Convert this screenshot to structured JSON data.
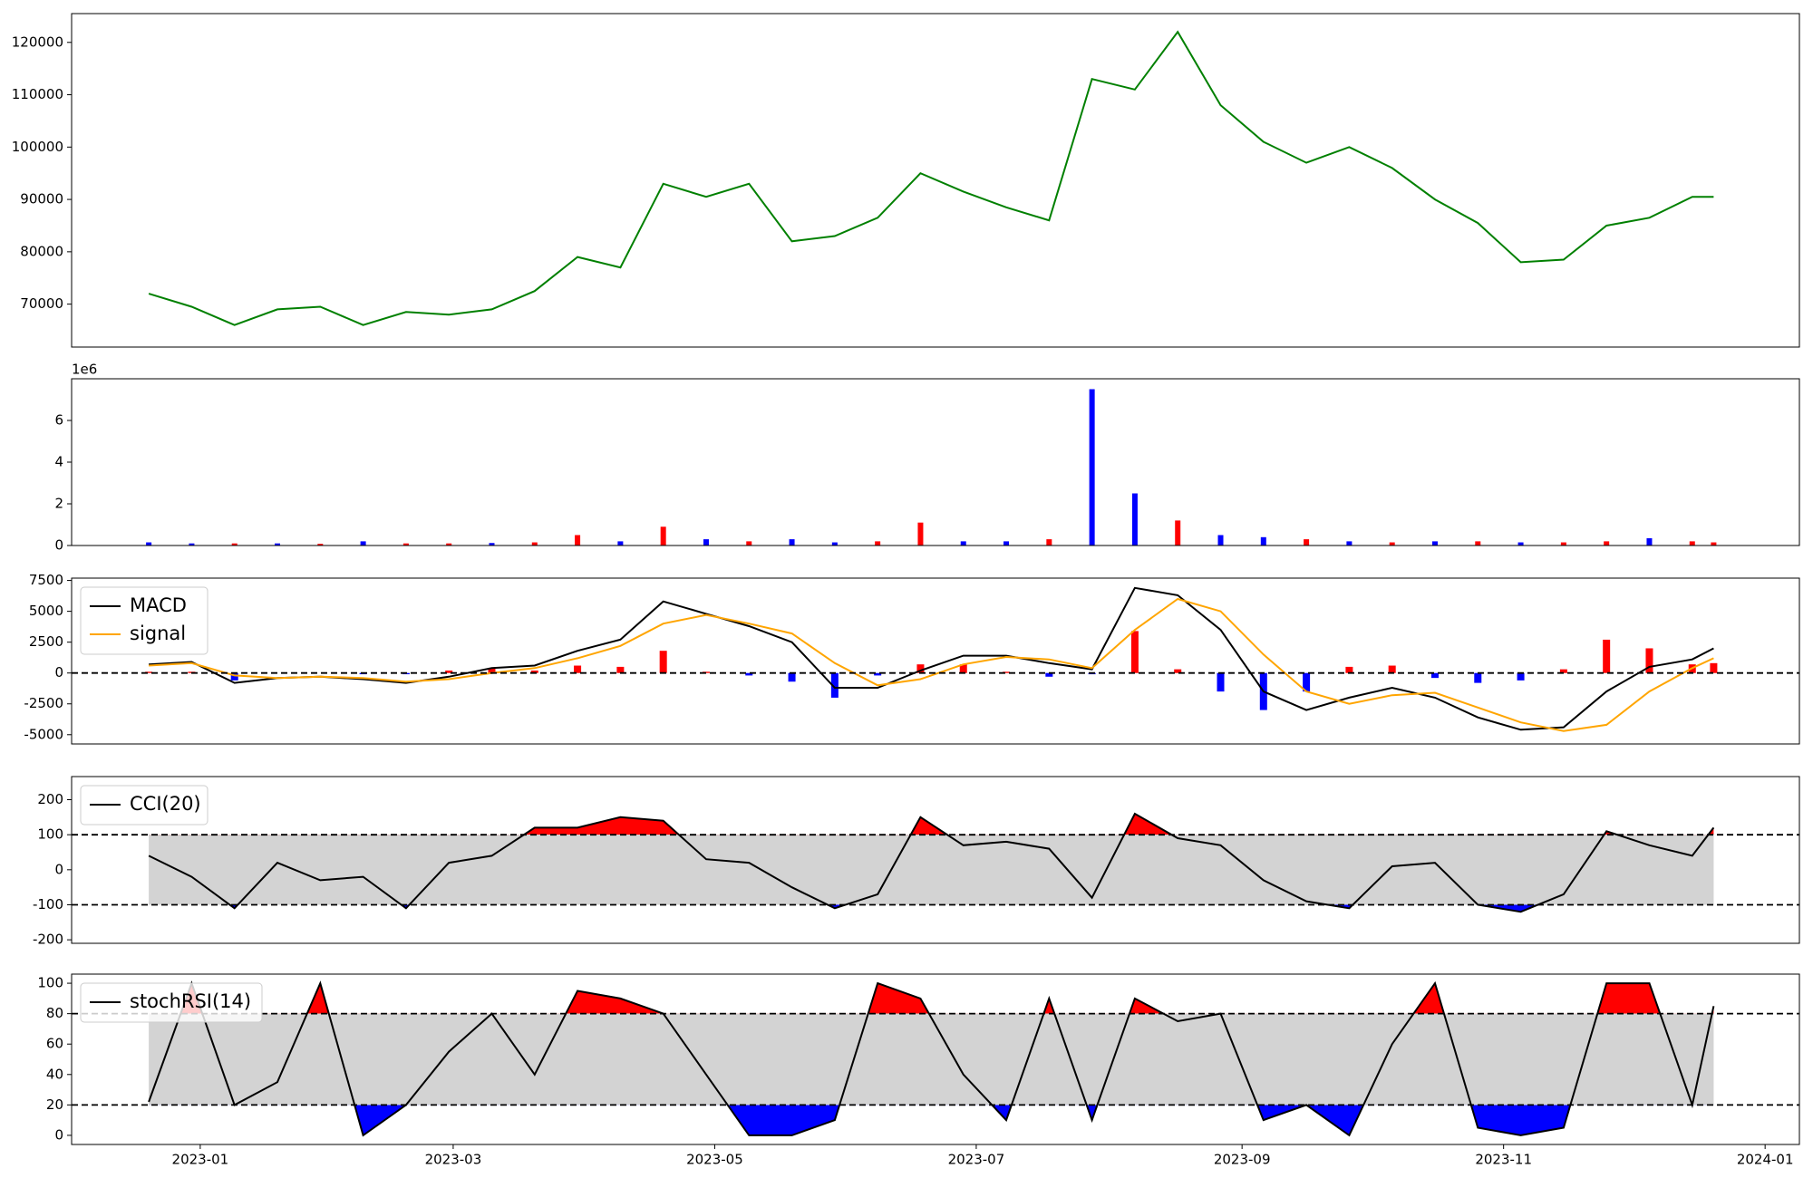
{
  "chart_data": [
    {
      "type": "line",
      "color": "#008000",
      "x": [
        "2022-12-20",
        "2022-12-30",
        "2023-01-09",
        "2023-01-19",
        "2023-01-29",
        "2023-02-08",
        "2023-02-18",
        "2023-02-28",
        "2023-03-10",
        "2023-03-20",
        "2023-03-30",
        "2023-04-09",
        "2023-04-19",
        "2023-04-29",
        "2023-05-09",
        "2023-05-19",
        "2023-05-29",
        "2023-06-08",
        "2023-06-18",
        "2023-06-28",
        "2023-07-08",
        "2023-07-18",
        "2023-07-28",
        "2023-08-07",
        "2023-08-17",
        "2023-08-27",
        "2023-09-06",
        "2023-09-16",
        "2023-09-26",
        "2023-10-06",
        "2023-10-16",
        "2023-10-26",
        "2023-11-05",
        "2023-11-15",
        "2023-11-25",
        "2023-12-05",
        "2023-12-15",
        "2023-12-20"
      ],
      "values": [
        72000,
        69500,
        66000,
        69000,
        69500,
        66000,
        68500,
        68000,
        69000,
        72500,
        79000,
        77000,
        93000,
        90500,
        93000,
        82000,
        83000,
        86500,
        95000,
        91500,
        88500,
        86000,
        113000,
        111000,
        122000,
        108000,
        101000,
        97000,
        100000,
        96000,
        90000,
        85500,
        78000,
        78500,
        85000,
        86500,
        90500,
        90500
      ],
      "xlim": [
        "2022-12-02",
        "2024-01-09"
      ],
      "ylim": [
        61800,
        125500
      ],
      "yticks": [
        70000,
        80000,
        90000,
        100000,
        110000,
        120000
      ]
    },
    {
      "type": "bar",
      "offset_label": "1e6",
      "x": [
        "2022-12-20",
        "2022-12-30",
        "2023-01-09",
        "2023-01-19",
        "2023-01-29",
        "2023-02-08",
        "2023-02-18",
        "2023-02-28",
        "2023-03-10",
        "2023-03-20",
        "2023-03-30",
        "2023-04-09",
        "2023-04-19",
        "2023-04-29",
        "2023-05-09",
        "2023-05-19",
        "2023-05-29",
        "2023-06-08",
        "2023-06-18",
        "2023-06-28",
        "2023-07-08",
        "2023-07-18",
        "2023-07-28",
        "2023-08-07",
        "2023-08-17",
        "2023-08-27",
        "2023-09-06",
        "2023-09-16",
        "2023-09-26",
        "2023-10-06",
        "2023-10-16",
        "2023-10-26",
        "2023-11-05",
        "2023-11-15",
        "2023-11-25",
        "2023-12-05",
        "2023-12-15",
        "2023-12-20"
      ],
      "values": [
        0.15,
        0.1,
        0.1,
        0.1,
        0.08,
        0.2,
        0.1,
        0.1,
        0.12,
        0.15,
        0.5,
        0.2,
        0.9,
        0.3,
        0.2,
        0.3,
        0.15,
        0.2,
        1.1,
        0.2,
        0.2,
        0.3,
        7.5,
        2.5,
        1.2,
        0.5,
        0.4,
        0.3,
        0.2,
        0.15,
        0.2,
        0.2,
        0.15,
        0.15,
        0.2,
        0.35,
        0.2,
        0.15
      ],
      "colors": [
        "blue",
        "blue",
        "red",
        "blue",
        "red",
        "blue",
        "red",
        "red",
        "blue",
        "red",
        "red",
        "blue",
        "red",
        "blue",
        "red",
        "blue",
        "blue",
        "red",
        "red",
        "blue",
        "blue",
        "red",
        "blue",
        "blue",
        "red",
        "blue",
        "blue",
        "red",
        "blue",
        "red",
        "blue",
        "red",
        "blue",
        "red",
        "red",
        "blue",
        "red",
        "red"
      ],
      "xlim": [
        "2022-12-02",
        "2024-01-09"
      ],
      "ylim": [
        0,
        8
      ],
      "yticks": [
        0,
        2,
        4,
        6
      ]
    },
    {
      "type": "macd",
      "legend": "upper left",
      "x": [
        "2022-12-20",
        "2022-12-30",
        "2023-01-09",
        "2023-01-19",
        "2023-01-29",
        "2023-02-08",
        "2023-02-18",
        "2023-02-28",
        "2023-03-10",
        "2023-03-20",
        "2023-03-30",
        "2023-04-09",
        "2023-04-19",
        "2023-04-29",
        "2023-05-09",
        "2023-05-19",
        "2023-05-29",
        "2023-06-08",
        "2023-06-18",
        "2023-06-28",
        "2023-07-08",
        "2023-07-18",
        "2023-07-28",
        "2023-08-07",
        "2023-08-17",
        "2023-08-27",
        "2023-09-06",
        "2023-09-16",
        "2023-09-26",
        "2023-10-06",
        "2023-10-16",
        "2023-10-26",
        "2023-11-05",
        "2023-11-15",
        "2023-11-25",
        "2023-12-05",
        "2023-12-15",
        "2023-12-20"
      ],
      "series": [
        {
          "name": "MACD",
          "color": "#000000",
          "values": [
            700,
            900,
            -800,
            -400,
            -300,
            -500,
            -800,
            -300,
            400,
            600,
            1800,
            2700,
            5800,
            4800,
            3800,
            2500,
            -1200,
            -1200,
            200,
            1400,
            1400,
            800,
            300,
            6900,
            6300,
            3500,
            -1500,
            -3000,
            -2000,
            -1200,
            -2000,
            -3600,
            -4600,
            -4400,
            -1500,
            500,
            1100,
            2000
          ]
        },
        {
          "name": "signal",
          "color": "#ffa500",
          "values": [
            600,
            800,
            -200,
            -400,
            -300,
            -400,
            -700,
            -500,
            0,
            400,
            1200,
            2200,
            4000,
            4700,
            4000,
            3200,
            800,
            -1000,
            -500,
            700,
            1300,
            1100,
            400,
            3500,
            6000,
            5000,
            1500,
            -1500,
            -2500,
            -1800,
            -1600,
            -2800,
            -4000,
            -4700,
            -4200,
            -1500,
            400,
            1200
          ]
        }
      ],
      "histogram": {
        "values": [
          100,
          100,
          -600,
          0,
          0,
          -100,
          -100,
          200,
          400,
          200,
          600,
          500,
          1800,
          100,
          -200,
          -700,
          -2000,
          -200,
          700,
          700,
          100,
          -300,
          -100,
          3400,
          300,
          -1500,
          -3000,
          -1500,
          500,
          600,
          -400,
          -800,
          -600,
          300,
          2700,
          2000,
          700,
          800
        ],
        "up_color": "red",
        "down_color": "blue"
      },
      "hlines": [
        0
      ],
      "xlim": [
        "2022-12-02",
        "2024-01-09"
      ],
      "ylim": [
        -5750,
        7690
      ],
      "yticks": [
        -5000,
        -2500,
        0,
        2500,
        5000,
        7500
      ]
    },
    {
      "type": "oscillator",
      "legend": "upper left",
      "x": [
        "2022-12-20",
        "2022-12-30",
        "2023-01-09",
        "2023-01-19",
        "2023-01-29",
        "2023-02-08",
        "2023-02-18",
        "2023-02-28",
        "2023-03-10",
        "2023-03-20",
        "2023-03-30",
        "2023-04-09",
        "2023-04-19",
        "2023-04-29",
        "2023-05-09",
        "2023-05-19",
        "2023-05-29",
        "2023-06-08",
        "2023-06-18",
        "2023-06-28",
        "2023-07-08",
        "2023-07-18",
        "2023-07-28",
        "2023-08-07",
        "2023-08-17",
        "2023-08-27",
        "2023-09-06",
        "2023-09-16",
        "2023-09-26",
        "2023-10-06",
        "2023-10-16",
        "2023-10-26",
        "2023-11-05",
        "2023-11-15",
        "2023-11-25",
        "2023-12-05",
        "2023-12-15",
        "2023-12-20"
      ],
      "series": [
        {
          "name": "CCI(20)",
          "color": "#000000",
          "values": [
            40,
            -20,
            -110,
            20,
            -30,
            -20,
            -110,
            20,
            40,
            120,
            120,
            150,
            140,
            30,
            20,
            -50,
            -110,
            -70,
            150,
            70,
            80,
            60,
            -80,
            160,
            90,
            70,
            -30,
            -90,
            -110,
            10,
            20,
            -100,
            -120,
            -70,
            110,
            70,
            40,
            120
          ]
        }
      ],
      "bands": [
        -100,
        100
      ],
      "band_color": "#d3d3d3",
      "up_color": "red",
      "down_color": "blue",
      "xlim": [
        "2022-12-02",
        "2024-01-09"
      ],
      "ylim": [
        -210,
        266
      ],
      "yticks": [
        -200,
        -100,
        0,
        100,
        200
      ]
    },
    {
      "type": "oscillator",
      "legend": "upper left",
      "x": [
        "2022-12-20",
        "2022-12-30",
        "2023-01-09",
        "2023-01-19",
        "2023-01-29",
        "2023-02-08",
        "2023-02-18",
        "2023-02-28",
        "2023-03-10",
        "2023-03-20",
        "2023-03-30",
        "2023-04-09",
        "2023-04-19",
        "2023-04-29",
        "2023-05-09",
        "2023-05-19",
        "2023-05-29",
        "2023-06-08",
        "2023-06-18",
        "2023-06-28",
        "2023-07-08",
        "2023-07-18",
        "2023-07-28",
        "2023-08-07",
        "2023-08-17",
        "2023-08-27",
        "2023-09-06",
        "2023-09-16",
        "2023-09-26",
        "2023-10-06",
        "2023-10-16",
        "2023-10-26",
        "2023-11-05",
        "2023-11-15",
        "2023-11-25",
        "2023-12-05",
        "2023-12-15",
        "2023-12-20"
      ],
      "series": [
        {
          "name": "stochRSI(14)",
          "color": "#000000",
          "values": [
            22,
            100,
            20,
            35,
            100,
            0,
            20,
            55,
            80,
            40,
            95,
            90,
            80,
            40,
            0,
            0,
            10,
            100,
            90,
            40,
            10,
            90,
            10,
            90,
            75,
            80,
            10,
            20,
            0,
            60,
            100,
            5,
            0,
            5,
            100,
            100,
            20,
            85
          ]
        }
      ],
      "bands": [
        20,
        80
      ],
      "band_color": "#d3d3d3",
      "up_color": "red",
      "down_color": "blue",
      "xlim": [
        "2022-12-02",
        "2024-01-09"
      ],
      "ylim": [
        -6,
        106
      ],
      "yticks": [
        0,
        20,
        40,
        60,
        80,
        100
      ],
      "xticks": [
        {
          "value": "2023-01-01",
          "label": "2023-01"
        },
        {
          "value": "2023-03-01",
          "label": "2023-03"
        },
        {
          "value": "2023-05-01",
          "label": "2023-05"
        },
        {
          "value": "2023-07-01",
          "label": "2023-07"
        },
        {
          "value": "2023-09-01",
          "label": "2023-09"
        },
        {
          "value": "2023-11-01",
          "label": "2023-11"
        },
        {
          "value": "2024-01-01",
          "label": "2024-01"
        }
      ]
    }
  ]
}
